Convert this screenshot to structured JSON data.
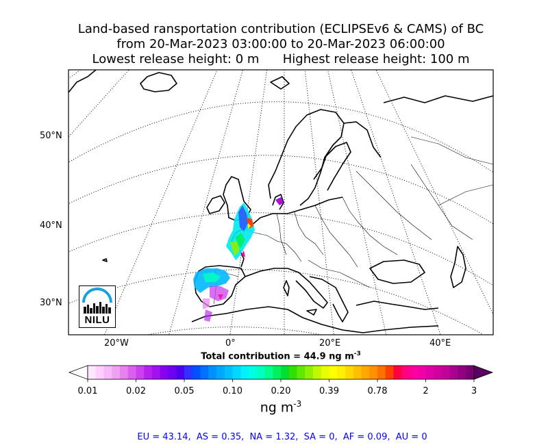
{
  "title": {
    "line1": "Land-based ransportation contribution (ECLIPSEv6 & CAMS) of BC",
    "line2": "from 20-Mar-2023 03:00:00 to 20-Mar-2023 06:00:00",
    "line3": "Lowest release height: 0 m      Highest release height: 100 m"
  },
  "map": {
    "projection": "polar stereographic",
    "gridlines": "dotted",
    "lat_labels": [
      "50°N",
      "40°N",
      "30°N"
    ],
    "lon_labels": [
      "20°W",
      "0°",
      "20°E",
      "40°E"
    ]
  },
  "logo": {
    "text": "NILU",
    "color_arc": "#1aa0e0"
  },
  "colorbar": {
    "total_prefix": "Total contribution = 44.9 ng m",
    "total_exp": "-3",
    "ticks": [
      "0.01",
      "0.02",
      "0.05",
      "0.10",
      "0.20",
      "0.39",
      "0.78",
      "2",
      "3"
    ],
    "unit": "ng m",
    "unit_exp": "-3",
    "colors": [
      "#ffe6ff",
      "#ffd0ff",
      "#f7b8f7",
      "#f0a0f0",
      "#e880f0",
      "#dc60f0",
      "#cc40f0",
      "#b820f0",
      "#a010f0",
      "#8800f0",
      "#6c00f0",
      "#5000f0",
      "#3030ff",
      "#0050ff",
      "#0070ff",
      "#0090ff",
      "#00a8ff",
      "#00c0ff",
      "#00d8ff",
      "#00f0ff",
      "#00ffe0",
      "#00ffc0",
      "#00ff90",
      "#00f060",
      "#00e030",
      "#30e000",
      "#60e800",
      "#90f000",
      "#c0f800",
      "#e8ff00",
      "#ffff00",
      "#fff000",
      "#ffd800",
      "#ffc000",
      "#ffa800",
      "#ff9000",
      "#ff7000",
      "#ff4000",
      "#ff0040",
      "#ff0080",
      "#ff00a0",
      "#f000a8",
      "#e000a8",
      "#d000a0",
      "#c00098",
      "#a80090",
      "#900080",
      "#780070"
    ],
    "extend_left_color": "#ffffff",
    "extend_right_color": "#5a0060"
  },
  "footer": {
    "text": "EU = 43.14,  AS = 0.35,  NA = 1.32,  SA = 0,  AF = 0.09,  AU = 0",
    "color": "#0000ff"
  }
}
